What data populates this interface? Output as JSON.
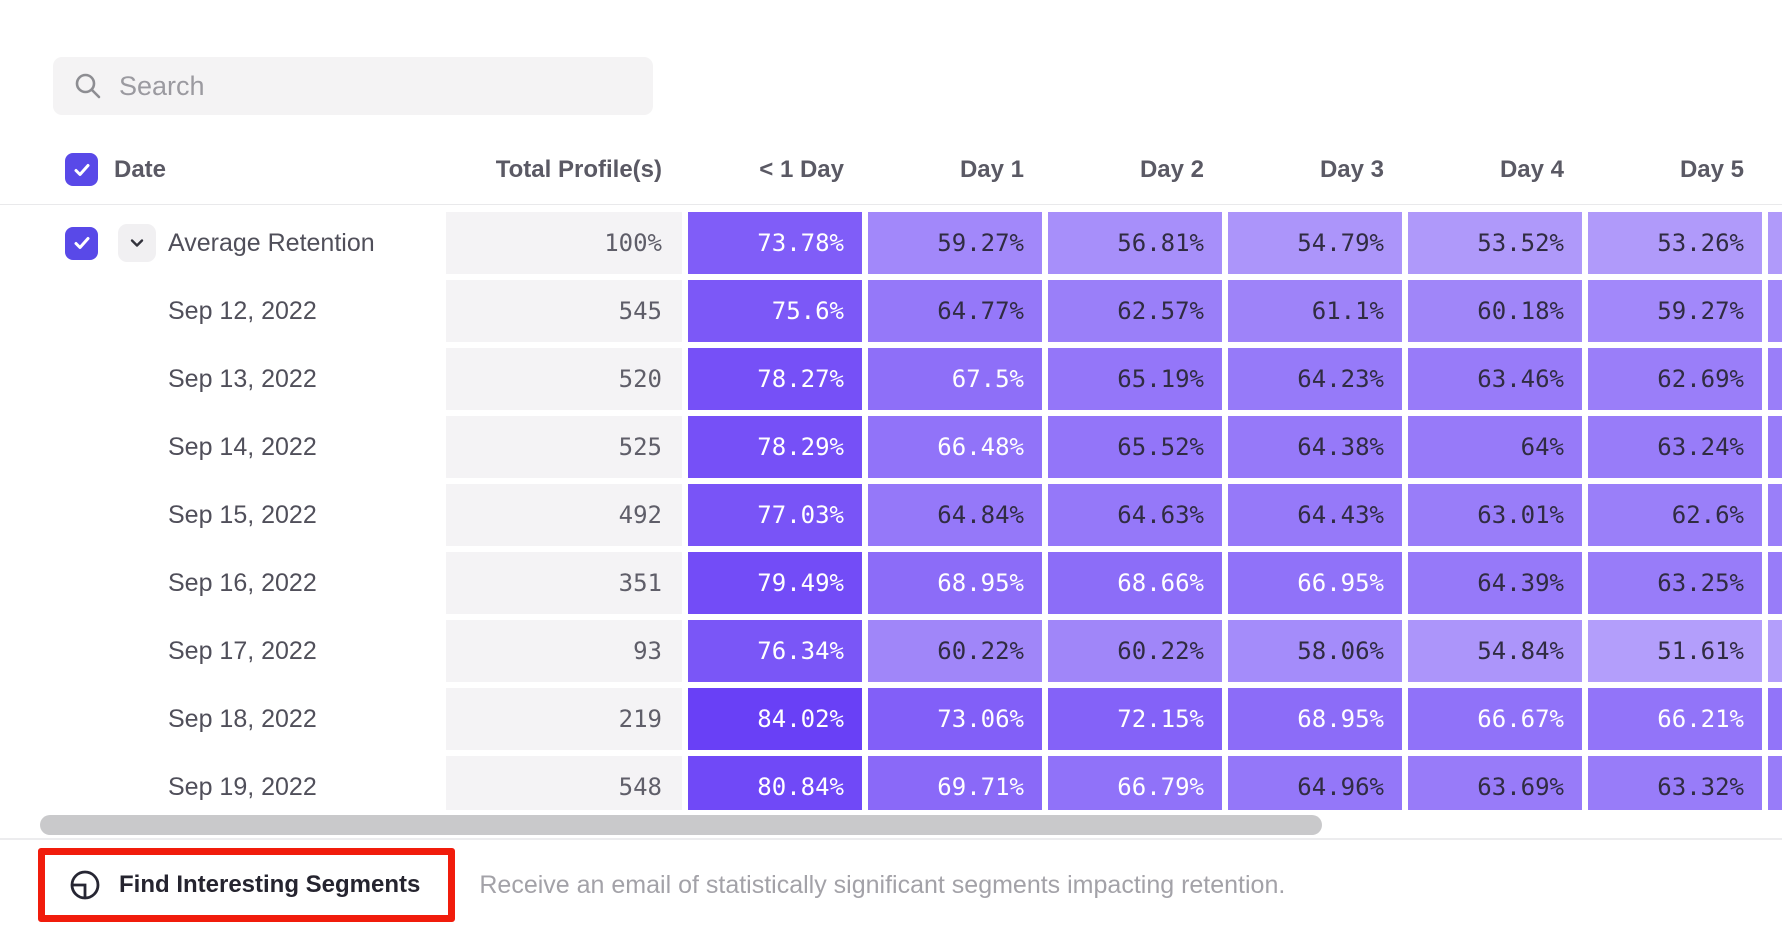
{
  "search": {
    "placeholder": "Search"
  },
  "table": {
    "columns": [
      "Date",
      "Total Profile(s)",
      "< 1 Day",
      "Day 1",
      "Day 2",
      "Day 3",
      "Day 4",
      "Day 5"
    ],
    "rows": [
      {
        "label": "Average Retention",
        "is_average": true,
        "total": "100%",
        "values": [
          "73.78%",
          "59.27%",
          "56.81%",
          "54.79%",
          "53.52%",
          "53.26%"
        ]
      },
      {
        "label": "Sep 12, 2022",
        "total": "545",
        "values": [
          "75.6%",
          "64.77%",
          "62.57%",
          "61.1%",
          "60.18%",
          "59.27%"
        ]
      },
      {
        "label": "Sep 13, 2022",
        "total": "520",
        "values": [
          "78.27%",
          "67.5%",
          "65.19%",
          "64.23%",
          "63.46%",
          "62.69%"
        ]
      },
      {
        "label": "Sep 14, 2022",
        "total": "525",
        "values": [
          "78.29%",
          "66.48%",
          "65.52%",
          "64.38%",
          "64%",
          "63.24%"
        ]
      },
      {
        "label": "Sep 15, 2022",
        "total": "492",
        "values": [
          "77.03%",
          "64.84%",
          "64.63%",
          "64.43%",
          "63.01%",
          "62.6%"
        ]
      },
      {
        "label": "Sep 16, 2022",
        "total": "351",
        "values": [
          "79.49%",
          "68.95%",
          "68.66%",
          "66.95%",
          "64.39%",
          "63.25%"
        ]
      },
      {
        "label": "Sep 17, 2022",
        "total": "93",
        "values": [
          "76.34%",
          "60.22%",
          "60.22%",
          "58.06%",
          "54.84%",
          "51.61%"
        ]
      },
      {
        "label": "Sep 18, 2022",
        "total": "219",
        "values": [
          "84.02%",
          "73.06%",
          "72.15%",
          "68.95%",
          "66.67%",
          "66.21%"
        ]
      },
      {
        "label": "Sep 19, 2022",
        "total": "548",
        "values": [
          "80.84%",
          "69.71%",
          "66.79%",
          "64.96%",
          "63.69%",
          "63.32%"
        ]
      }
    ]
  },
  "footer": {
    "button_label": "Find Interesting Segments",
    "description": "Receive an email of statistically significant segments impacting retention."
  },
  "colors": {
    "accent": "#5949e8",
    "cell_base": "#5425f5",
    "cell_dark_text": "#302c42",
    "highlight": "#f11c0c"
  }
}
